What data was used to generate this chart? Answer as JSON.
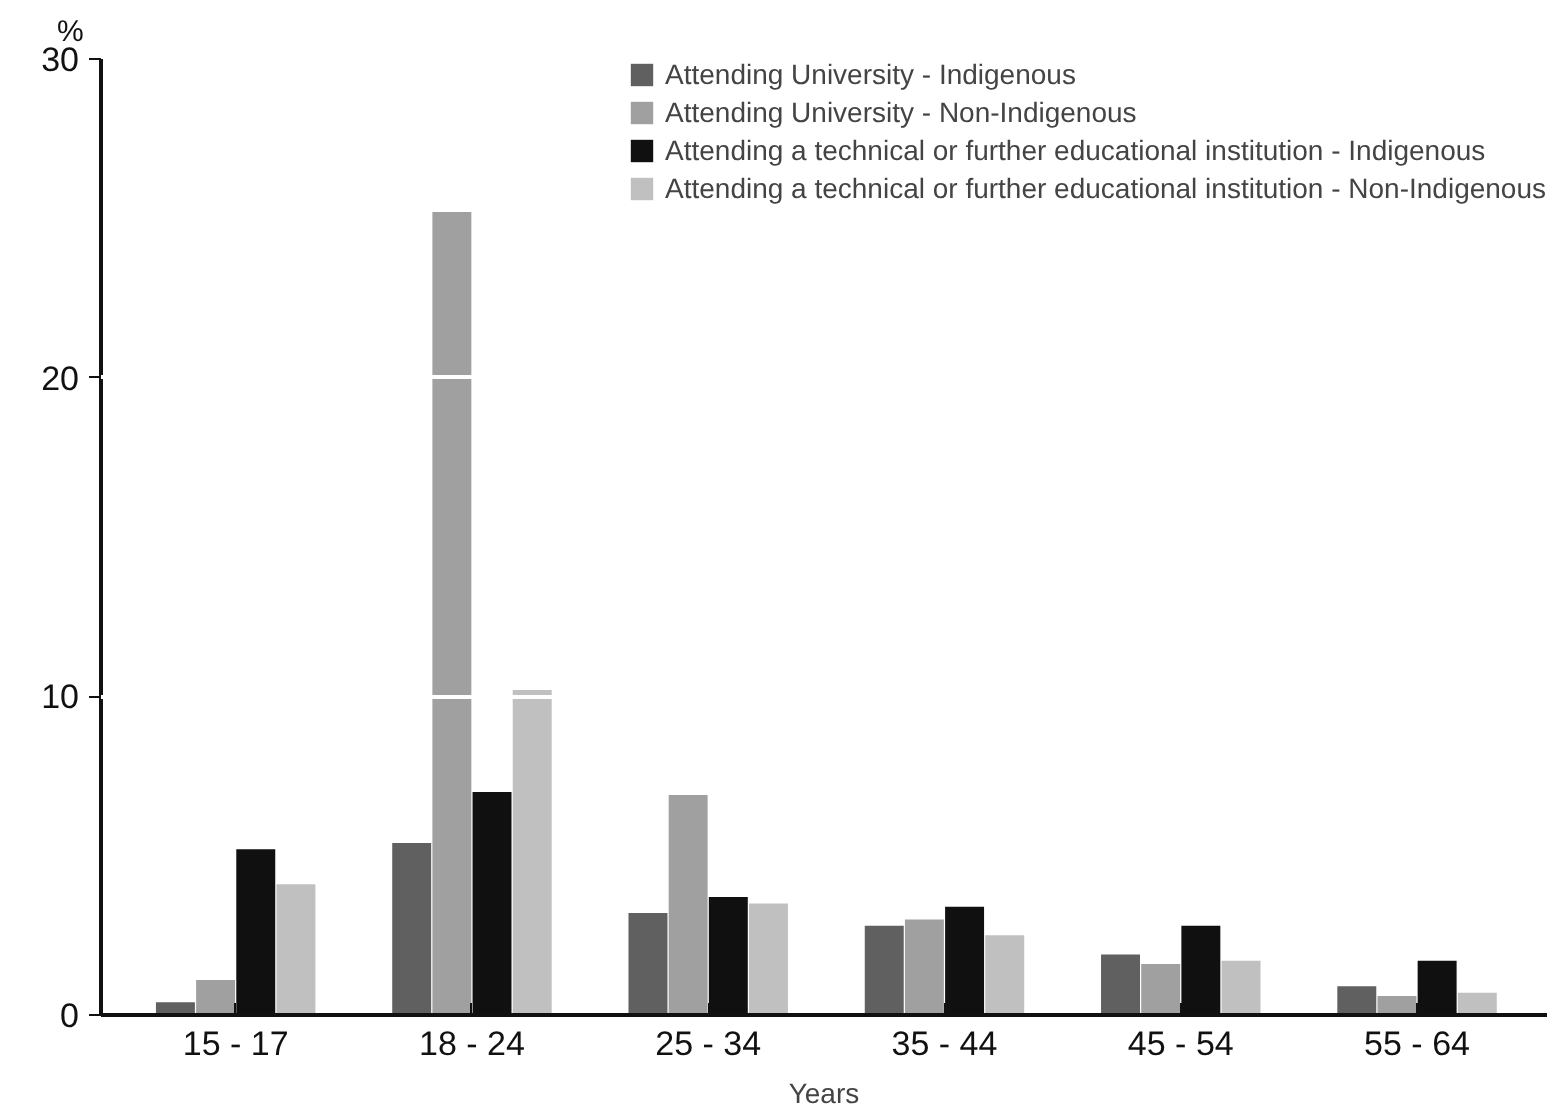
{
  "chart_data": {
    "type": "bar",
    "xlabel": "Years",
    "ylabel": "%",
    "categories": [
      "15 - 17",
      "18 - 24",
      "25 - 34",
      "35 - 44",
      "45 - 54",
      "55 - 64"
    ],
    "series": [
      {
        "name": "Attending University - Indigenous",
        "color": "#606060",
        "values": [
          0.4,
          5.4,
          3.2,
          2.8,
          1.9,
          0.9
        ]
      },
      {
        "name": "Attending University - Non-Indigenous",
        "color": "#a0a0a0",
        "values": [
          1.1,
          25.2,
          6.9,
          3.0,
          1.6,
          0.6
        ]
      },
      {
        "name": "Attending a technical or further educational institution - Indigenous",
        "color": "#101010",
        "values": [
          5.2,
          7.0,
          3.7,
          3.4,
          2.8,
          1.7
        ]
      },
      {
        "name": "Attending a technical or further educational institution - Non-Indigenous",
        "color": "#c0c0c0",
        "values": [
          4.1,
          10.2,
          3.5,
          2.5,
          1.7,
          0.7
        ]
      }
    ],
    "ylim": [
      0,
      30
    ],
    "yticks": [
      0,
      10,
      20,
      30
    ],
    "grid": "y",
    "legend": "top right"
  }
}
